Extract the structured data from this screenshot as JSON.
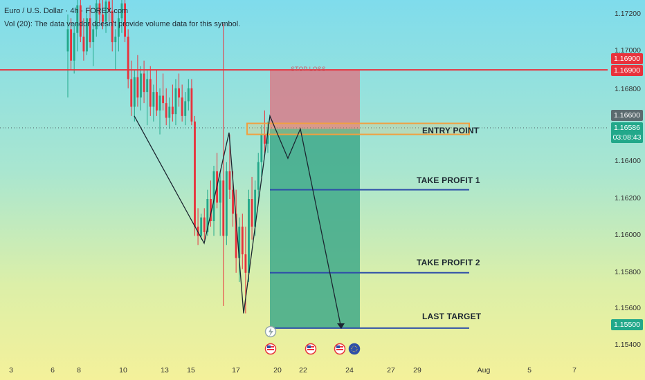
{
  "header": {
    "title": "Euro / U.S. Dollar · 4h · FOREX.com",
    "volume_note": "Vol (20): The data vendor doesn't provide volume data for this symbol."
  },
  "chart_data": {
    "type": "candlestick",
    "symbol": "Euro / U.S. Dollar",
    "interval": "4h",
    "ylim": [
      1.1536,
      1.173
    ],
    "y_ticks": [
      "1.17200",
      "1.17000",
      "1.16800",
      "1.16400",
      "1.16200",
      "1.16000",
      "1.15800",
      "1.15600",
      "1.15400"
    ],
    "x_ticks": [
      "3",
      "6",
      "8",
      "10",
      "13",
      "15",
      "17",
      "20",
      "22",
      "24",
      "27",
      "29",
      "Aug",
      "5",
      "7"
    ],
    "price_labels": [
      {
        "text": "1.16900",
        "price": 1.169,
        "color": "#e8323c"
      },
      {
        "text": "1.16900",
        "price": 1.16885,
        "color": "#e8323c"
      },
      {
        "text": "1.16600",
        "price": 1.166,
        "color": "#5b6b6f"
      },
      {
        "text": "1.16586",
        "sub": "03:08:43",
        "price": 1.16586,
        "color": "#22a88a"
      },
      {
        "text": "1.15500",
        "price": 1.155,
        "color": "#22a88a"
      }
    ],
    "levels": [
      {
        "name": "STOP LOSS",
        "price": 1.169,
        "color": "#e8323c"
      },
      {
        "name": "ENTRY POINT",
        "price": 1.1658,
        "color": "#f0a040"
      },
      {
        "name": "TAKE PROFIT 1",
        "price": 1.1625,
        "color": "#2f4fa8"
      },
      {
        "name": "TAKE PROFIT 2",
        "price": 1.158,
        "color": "#2f4fa8"
      },
      {
        "name": "LAST TARGET",
        "price": 1.155,
        "color": "#2f4fa8"
      }
    ],
    "candles": [
      [
        1.17,
        1.172,
        1.1675,
        1.1712
      ],
      [
        1.1712,
        1.1718,
        1.169,
        1.1695
      ],
      [
        1.1695,
        1.1715,
        1.1688,
        1.171
      ],
      [
        1.171,
        1.173,
        1.17,
        1.1725
      ],
      [
        1.1725,
        1.173,
        1.1705,
        1.1708
      ],
      [
        1.1708,
        1.1718,
        1.1695,
        1.17
      ],
      [
        1.17,
        1.1722,
        1.1698,
        1.1718
      ],
      [
        1.1718,
        1.1725,
        1.1702,
        1.1705
      ],
      [
        1.1705,
        1.1715,
        1.1692,
        1.1712
      ],
      [
        1.1712,
        1.173,
        1.1708,
        1.1726
      ],
      [
        1.1726,
        1.173,
        1.1715,
        1.172
      ],
      [
        1.172,
        1.1728,
        1.1712,
        1.1716
      ],
      [
        1.1716,
        1.173,
        1.171,
        1.1727
      ],
      [
        1.1727,
        1.173,
        1.1716,
        1.1722
      ],
      [
        1.1722,
        1.1728,
        1.17,
        1.1705
      ],
      [
        1.1705,
        1.1712,
        1.169,
        1.1708
      ],
      [
        1.1708,
        1.1722,
        1.17,
        1.1718
      ],
      [
        1.1718,
        1.173,
        1.171,
        1.1726
      ],
      [
        1.1726,
        1.173,
        1.1705,
        1.1708
      ],
      [
        1.1708,
        1.1712,
        1.168,
        1.1685
      ],
      [
        1.1685,
        1.1695,
        1.1665,
        1.167
      ],
      [
        1.167,
        1.169,
        1.1662,
        1.1686
      ],
      [
        1.1686,
        1.1698,
        1.167,
        1.1675
      ],
      [
        1.1675,
        1.1692,
        1.1668,
        1.1688
      ],
      [
        1.1688,
        1.1695,
        1.1672,
        1.1678
      ],
      [
        1.1678,
        1.169,
        1.166,
        1.1685
      ],
      [
        1.1685,
        1.1692,
        1.1665,
        1.167
      ],
      [
        1.167,
        1.1682,
        1.1662,
        1.1678
      ],
      [
        1.1678,
        1.169,
        1.1665,
        1.1668
      ],
      [
        1.1668,
        1.168,
        1.1655,
        1.1676
      ],
      [
        1.1676,
        1.1688,
        1.1668,
        1.1672
      ],
      [
        1.1672,
        1.168,
        1.166,
        1.1664
      ],
      [
        1.1664,
        1.1675,
        1.1658,
        1.167
      ],
      [
        1.167,
        1.1682,
        1.1662,
        1.1666
      ],
      [
        1.1666,
        1.1685,
        1.166,
        1.168
      ],
      [
        1.168,
        1.1688,
        1.167,
        1.1675
      ],
      [
        1.1675,
        1.1682,
        1.1662,
        1.1665
      ],
      [
        1.1665,
        1.1678,
        1.166,
        1.1673
      ],
      [
        1.1673,
        1.1685,
        1.1668,
        1.168
      ],
      [
        1.168,
        1.1685,
        1.166,
        1.1662
      ],
      [
        1.1662,
        1.1665,
        1.16,
        1.1605
      ],
      [
        1.1605,
        1.1615,
        1.1595,
        1.16
      ],
      [
        1.16,
        1.1612,
        1.1598,
        1.161
      ],
      [
        1.161,
        1.1615,
        1.1598,
        1.1602
      ],
      [
        1.1602,
        1.1625,
        1.16,
        1.162
      ],
      [
        1.162,
        1.163,
        1.1605,
        1.1608
      ],
      [
        1.1608,
        1.1638,
        1.16,
        1.1635
      ],
      [
        1.1635,
        1.1645,
        1.1615,
        1.1618
      ],
      [
        1.1618,
        1.1635,
        1.16,
        1.163
      ],
      [
        1.163,
        1.1715,
        1.1562,
        1.16
      ],
      [
        1.16,
        1.164,
        1.1595,
        1.1635
      ],
      [
        1.1635,
        1.1655,
        1.162,
        1.1625
      ],
      [
        1.1625,
        1.1635,
        1.1605,
        1.1612
      ],
      [
        1.1612,
        1.1625,
        1.158,
        1.1588
      ],
      [
        1.1588,
        1.161,
        1.1575,
        1.1605
      ],
      [
        1.1605,
        1.1612,
        1.1582,
        1.159
      ],
      [
        1.159,
        1.1605,
        1.1558,
        1.158
      ],
      [
        1.158,
        1.1625,
        1.1575,
        1.162
      ],
      [
        1.162,
        1.1632,
        1.1598,
        1.1605
      ],
      [
        1.1605,
        1.163,
        1.16,
        1.1625
      ],
      [
        1.1625,
        1.1645,
        1.1618,
        1.164
      ],
      [
        1.164,
        1.166,
        1.1632,
        1.1655
      ],
      [
        1.1655,
        1.1668,
        1.1645,
        1.165
      ],
      [
        1.165,
        1.1662,
        1.1645,
        1.1659
      ]
    ],
    "projection_path": [
      [
        1.1665,
        1.1665
      ],
      [
        1.1596,
        1.1596
      ],
      [
        1.1656,
        1.1656
      ],
      [
        1.1558,
        1.1558
      ],
      [
        1.1665,
        1.1665
      ],
      [
        1.1642,
        1.1642
      ],
      [
        1.1658,
        1.1658
      ],
      [
        1.155,
        1.155
      ]
    ]
  },
  "colors": {
    "up": "#22a88a",
    "down": "#e8323c",
    "stop_zone": "#d87c8a",
    "profit_zone": "#3fa98a",
    "level": "#2f4fa8"
  },
  "icons": [
    "lightning-icon",
    "us-flag-icon",
    "eu-flag-icon"
  ]
}
